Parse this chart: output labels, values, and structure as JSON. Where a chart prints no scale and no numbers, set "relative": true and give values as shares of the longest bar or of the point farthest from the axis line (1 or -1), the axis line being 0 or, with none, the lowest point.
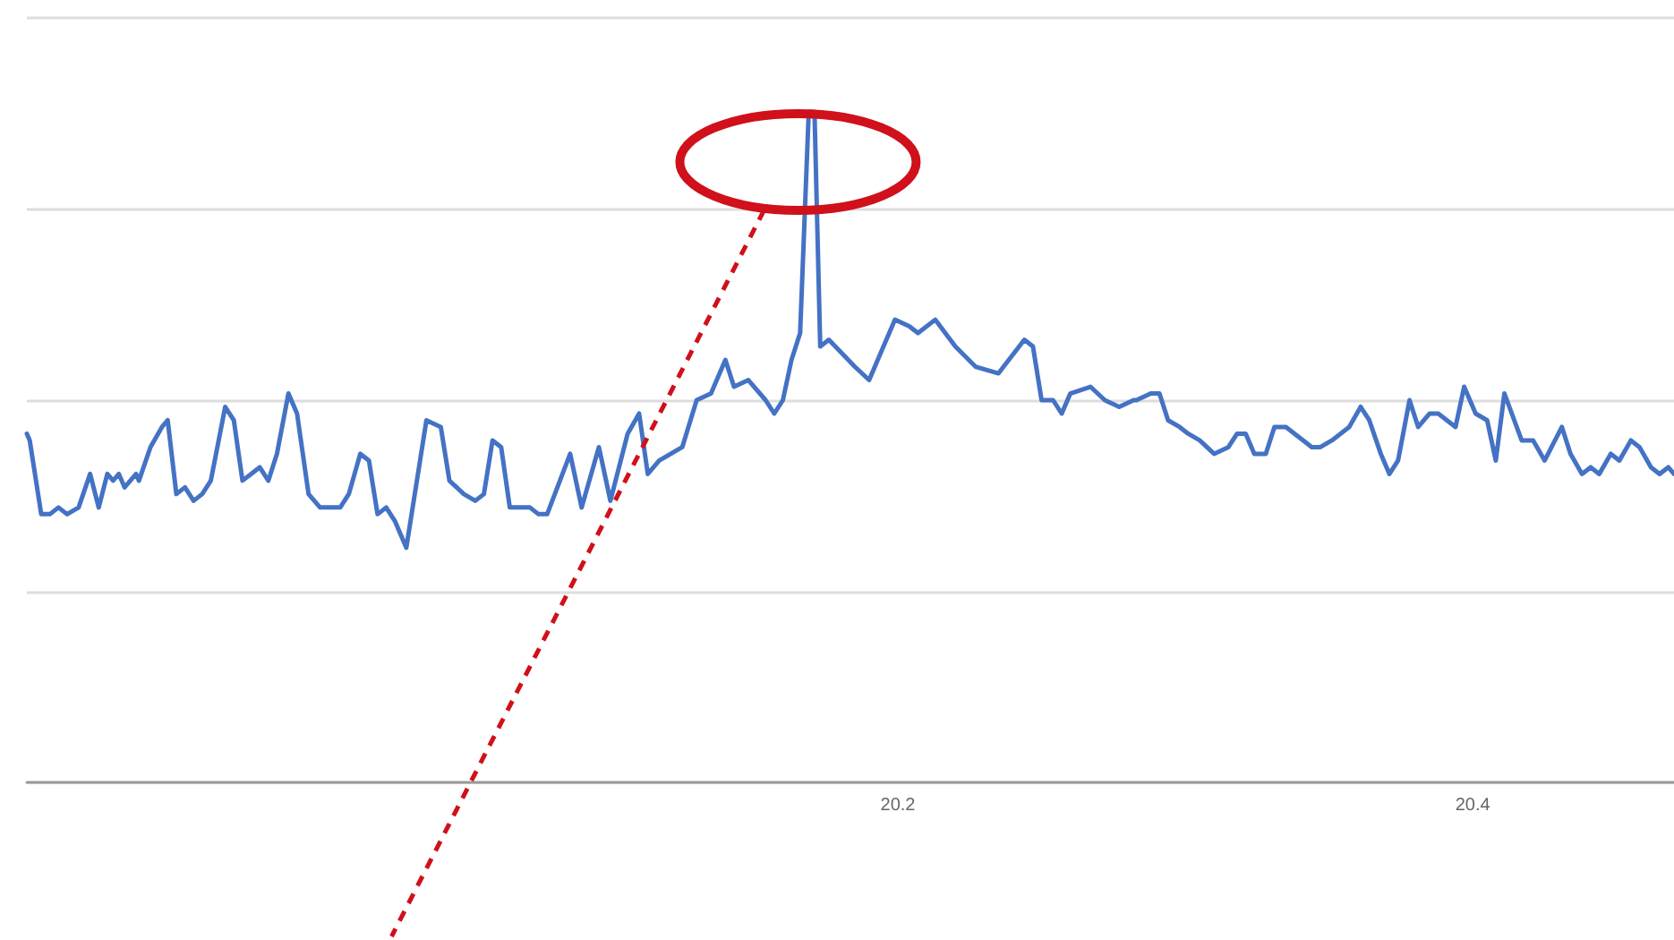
{
  "chart_data": {
    "type": "line",
    "relative": true,
    "grid": "y",
    "marker": "none",
    "line_style": "solid",
    "xlim": [
      19.897,
      20.47
    ],
    "xticks": [
      20.2,
      20.4
    ],
    "series": [
      {
        "color": "#4472c4",
        "x": [
          19.897,
          19.898,
          19.902,
          19.905,
          19.908,
          19.911,
          19.915,
          19.919,
          19.922,
          19.925,
          19.927,
          19.929,
          19.931,
          19.935,
          19.936,
          19.94,
          19.944,
          19.946,
          19.949,
          19.952,
          19.955,
          19.958,
          19.961,
          19.966,
          19.969,
          19.972,
          19.975,
          19.978,
          19.981,
          19.984,
          19.988,
          19.991,
          19.995,
          19.999,
          20.003,
          20.006,
          20.009,
          20.013,
          20.016,
          20.019,
          20.022,
          20.025,
          20.029,
          20.036,
          20.041,
          20.044,
          20.049,
          20.053,
          20.056,
          20.059,
          20.062,
          20.065,
          20.069,
          20.072,
          20.075,
          20.078,
          20.086,
          20.09,
          20.096,
          20.1,
          20.106,
          20.11,
          20.113,
          20.117,
          20.125,
          20.13,
          20.135,
          20.14,
          20.143,
          20.148,
          20.154,
          20.157,
          20.16,
          20.163,
          20.166,
          20.169,
          20.171,
          20.173,
          20.176,
          20.185,
          20.19,
          20.199,
          20.204,
          20.207,
          20.213,
          20.22,
          20.227,
          20.235,
          20.244,
          20.247,
          20.25,
          20.254,
          20.257,
          20.26,
          20.267,
          20.272,
          20.277,
          20.282,
          20.283,
          20.288,
          20.291,
          20.294,
          20.298,
          20.301,
          20.305,
          20.31,
          20.315,
          20.318,
          20.321,
          20.324,
          20.328,
          20.331,
          20.335,
          20.341,
          20.344,
          20.347,
          20.351,
          20.354,
          20.357,
          20.361,
          20.364,
          20.368,
          20.371,
          20.374,
          20.378,
          20.381,
          20.385,
          20.388,
          20.391,
          20.394,
          20.397,
          20.401,
          20.405,
          20.408,
          20.411,
          20.417,
          20.421,
          20.425,
          20.431,
          20.434,
          20.438,
          20.441,
          20.444,
          20.448,
          20.451,
          20.455,
          20.458,
          20.462,
          20.465,
          20.468,
          20.47
        ],
        "values": [
          0.52,
          0.51,
          0.4,
          0.4,
          0.41,
          0.4,
          0.41,
          0.46,
          0.41,
          0.46,
          0.45,
          0.46,
          0.44,
          0.46,
          0.45,
          0.5,
          0.53,
          0.54,
          0.43,
          0.44,
          0.42,
          0.43,
          0.45,
          0.56,
          0.54,
          0.45,
          0.46,
          0.47,
          0.45,
          0.49,
          0.58,
          0.55,
          0.43,
          0.41,
          0.41,
          0.41,
          0.43,
          0.49,
          0.48,
          0.4,
          0.41,
          0.39,
          0.35,
          0.54,
          0.53,
          0.45,
          0.43,
          0.42,
          0.43,
          0.51,
          0.5,
          0.41,
          0.41,
          0.41,
          0.4,
          0.4,
          0.49,
          0.41,
          0.5,
          0.42,
          0.52,
          0.55,
          0.46,
          0.48,
          0.5,
          0.57,
          0.58,
          0.63,
          0.59,
          0.6,
          0.57,
          0.55,
          0.57,
          0.63,
          0.67,
          1,
          1,
          0.65,
          0.66,
          0.62,
          0.6,
          0.69,
          0.68,
          0.67,
          0.69,
          0.65,
          0.62,
          0.61,
          0.66,
          0.65,
          0.57,
          0.57,
          0.55,
          0.58,
          0.59,
          0.57,
          0.56,
          0.57,
          0.57,
          0.58,
          0.58,
          0.54,
          0.53,
          0.52,
          0.51,
          0.49,
          0.5,
          0.52,
          0.52,
          0.49,
          0.49,
          0.53,
          0.53,
          0.51,
          0.5,
          0.5,
          0.51,
          0.52,
          0.53,
          0.56,
          0.54,
          0.49,
          0.46,
          0.48,
          0.57,
          0.53,
          0.55,
          0.55,
          0.54,
          0.53,
          0.59,
          0.55,
          0.54,
          0.48,
          0.58,
          0.51,
          0.51,
          0.48,
          0.53,
          0.49,
          0.46,
          0.47,
          0.46,
          0.49,
          0.48,
          0.51,
          0.5,
          0.47,
          0.46,
          0.47,
          0.46
        ]
      }
    ]
  }
}
